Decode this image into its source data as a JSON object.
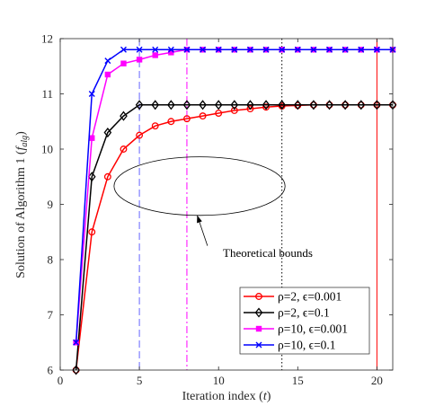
{
  "chart_data": {
    "type": "line",
    "xlabel_main": "Iteration index (",
    "xlabel_var": "t",
    "xlabel_end": ")",
    "ylabel_main": "Solution of Algorithm 1 (",
    "ylabel_var": "f",
    "ylabel_sub": "alg",
    "ylabel_end": ")",
    "xlim": [
      0,
      21
    ],
    "ylim": [
      6,
      12
    ],
    "xticks": [
      0,
      5,
      10,
      15,
      20
    ],
    "yticks": [
      6,
      7,
      8,
      9,
      10,
      11,
      12
    ],
    "grid": false,
    "legend_position": "bottom-right",
    "x": [
      1,
      2,
      3,
      4,
      5,
      6,
      7,
      8,
      9,
      10,
      11,
      12,
      13,
      14,
      15,
      16,
      17,
      18,
      19,
      20,
      21
    ],
    "series": [
      {
        "name": "ρ=2, ϵ=0.001",
        "color": "#ff0000",
        "marker": "circle",
        "values": [
          6.0,
          8.5,
          9.5,
          10.0,
          10.25,
          10.42,
          10.5,
          10.55,
          10.6,
          10.65,
          10.7,
          10.73,
          10.76,
          10.78,
          10.79,
          10.8,
          10.8,
          10.8,
          10.8,
          10.8,
          10.8
        ]
      },
      {
        "name": "ρ=2, ϵ=0.1",
        "color": "#000000",
        "marker": "diamond",
        "values": [
          6.0,
          9.5,
          10.3,
          10.6,
          10.8,
          10.8,
          10.8,
          10.8,
          10.8,
          10.8,
          10.8,
          10.8,
          10.8,
          10.8,
          10.8,
          10.8,
          10.8,
          10.8,
          10.8,
          10.8,
          10.8
        ]
      },
      {
        "name": "ρ=10, ϵ=0.001",
        "color": "#ff00ff",
        "marker": "square",
        "values": [
          6.5,
          10.2,
          11.35,
          11.55,
          11.62,
          11.7,
          11.75,
          11.8,
          11.8,
          11.8,
          11.8,
          11.8,
          11.8,
          11.8,
          11.8,
          11.8,
          11.8,
          11.8,
          11.8,
          11.8,
          11.8
        ]
      },
      {
        "name": "ρ=10, ϵ=0.1",
        "color": "#0000ff",
        "marker": "x",
        "values": [
          6.5,
          11.0,
          11.6,
          11.8,
          11.8,
          11.8,
          11.8,
          11.8,
          11.8,
          11.8,
          11.8,
          11.8,
          11.8,
          11.8,
          11.8,
          11.8,
          11.8,
          11.8,
          11.8,
          11.8,
          11.8
        ]
      }
    ],
    "vlines": [
      {
        "x": 5,
        "color": "#6666ff",
        "style": "dashed"
      },
      {
        "x": 8,
        "color": "#ff00ff",
        "style": "dashdot"
      },
      {
        "x": 14,
        "color": "#000000",
        "style": "dotted"
      },
      {
        "x": 20,
        "color": "#ff0000",
        "style": "solid"
      }
    ],
    "annotation": {
      "text": "Theoretical bounds",
      "ellipse_center": [
        8.8,
        9.33
      ],
      "ellipse_semi_axes": [
        5.4,
        0.53
      ],
      "arrow_from": [
        9.3,
        8.25
      ],
      "arrow_to": [
        8.65,
        8.8
      ]
    }
  }
}
